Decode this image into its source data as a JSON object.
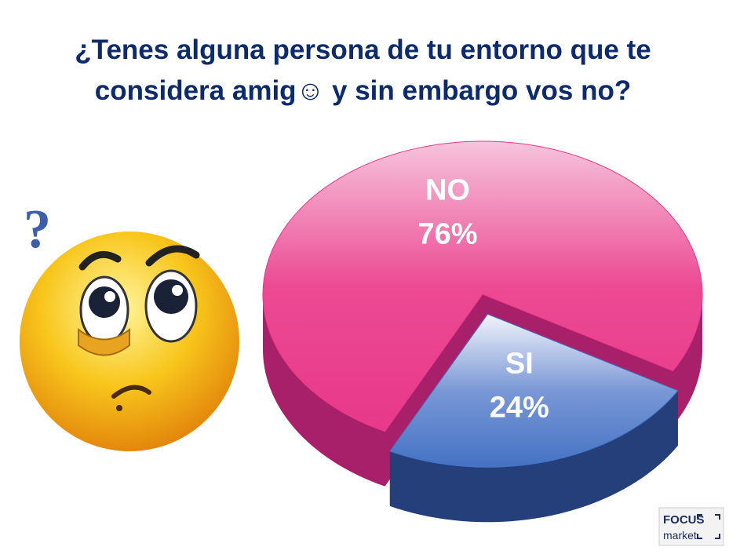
{
  "chart_data": {
    "type": "pie",
    "title": "¿Tenes alguna persona de tu entorno que te considera amig☺ y sin embargo vos no?",
    "categories": [
      "NO",
      "SI"
    ],
    "values": [
      76,
      24
    ],
    "value_labels": [
      "76%",
      "24%"
    ],
    "colors": [
      "#e8388a",
      "#4472c4"
    ]
  },
  "logo": {
    "line1": "FOCUS",
    "line2": "market"
  }
}
